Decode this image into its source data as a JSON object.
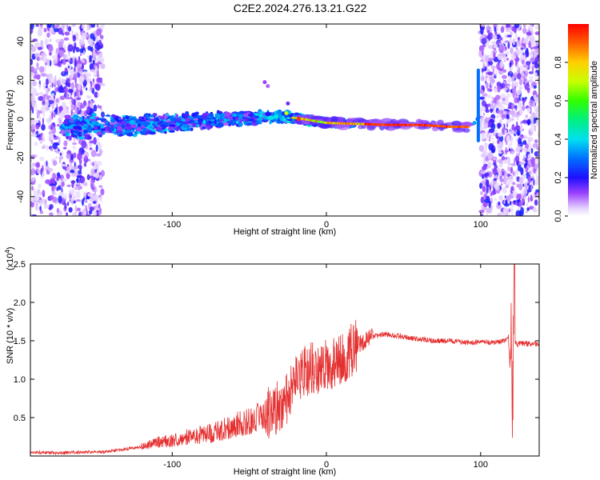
{
  "title": "C2E2.2024.276.13.21.G22",
  "colors": {
    "snr_line": "#e53030",
    "axis": "#000000"
  },
  "chart_data": [
    {
      "type": "heatmap",
      "xlabel": "Height of straight line (km)",
      "ylabel": "Frequency (Hz)",
      "xlim": [
        -192,
        138
      ],
      "ylim": [
        -50,
        49
      ],
      "xticks": [
        -100,
        0,
        100
      ],
      "xtick_labels": [
        "-100",
        "0",
        "100"
      ],
      "yticks": [
        -40,
        -20,
        0,
        20,
        40
      ],
      "ytick_labels": [
        "-40",
        "-20",
        "0",
        "20",
        "40"
      ],
      "colorbar": {
        "label": "Normalized spectral amplitude",
        "range": [
          0,
          1
        ],
        "ticks": [
          0.0,
          0.2,
          0.4,
          0.6,
          0.8
        ],
        "tick_labels": [
          "0.0",
          "0.2",
          "0.4",
          "0.6",
          "0.8"
        ]
      },
      "ridge": [
        {
          "x": -165,
          "f": -4
        },
        {
          "x": -140,
          "f": -3.5
        },
        {
          "x": -120,
          "f": -3
        },
        {
          "x": -100,
          "f": -2
        },
        {
          "x": -80,
          "f": -1
        },
        {
          "x": -60,
          "f": 0
        },
        {
          "x": -40,
          "f": 1
        },
        {
          "x": -25,
          "f": 1
        },
        {
          "x": -15,
          "f": 0
        },
        {
          "x": 0,
          "f": -2
        },
        {
          "x": 20,
          "f": -2.5
        },
        {
          "x": 40,
          "f": -3
        },
        {
          "x": 60,
          "f": -3
        },
        {
          "x": 80,
          "f": -4
        },
        {
          "x": 92,
          "f": -4
        }
      ],
      "noise_regions": [
        [
          -192,
          -145
        ],
        [
          100,
          138
        ]
      ]
    },
    {
      "type": "line",
      "xlabel": "Height of straight line (km)",
      "ylabel": "SNR (10 * v/v)",
      "exponent_label": "(x10",
      "exponent_power": "4",
      "exponent_close": ")",
      "xlim": [
        -192,
        138
      ],
      "ylim": [
        0,
        2.5
      ],
      "xticks": [
        -100,
        0,
        100
      ],
      "xtick_labels": [
        "-100",
        "0",
        "100"
      ],
      "yticks": [
        0.5,
        1.0,
        1.5,
        2.0,
        2.5
      ],
      "ytick_labels": [
        "0.5",
        "1.0",
        "1.5",
        "2.0",
        "2.5"
      ],
      "series": [
        {
          "x": [
            -192,
            -175,
            -160,
            -145,
            -135,
            -120,
            -110,
            -100,
            -90,
            -80,
            -70,
            -60,
            -50,
            -40,
            -30,
            -25,
            -20,
            -15,
            -10,
            -5,
            0,
            5,
            10,
            15,
            20,
            25,
            30,
            35,
            40,
            50,
            60,
            70,
            80,
            90,
            100,
            110,
            116,
            118,
            120,
            122,
            124,
            126,
            130,
            138
          ],
          "y": [
            0.05,
            0.04,
            0.05,
            0.05,
            0.08,
            0.12,
            0.18,
            0.2,
            0.25,
            0.28,
            0.32,
            0.4,
            0.45,
            0.55,
            0.65,
            0.75,
            0.95,
            1.1,
            1.15,
            1.12,
            1.18,
            1.2,
            1.25,
            1.35,
            1.45,
            1.5,
            1.55,
            1.58,
            1.58,
            1.55,
            1.52,
            1.5,
            1.5,
            1.48,
            1.48,
            1.48,
            1.5,
            1.55,
            0.8,
            1.5,
            1.45,
            1.47,
            1.46,
            1.45
          ]
        }
      ]
    }
  ]
}
